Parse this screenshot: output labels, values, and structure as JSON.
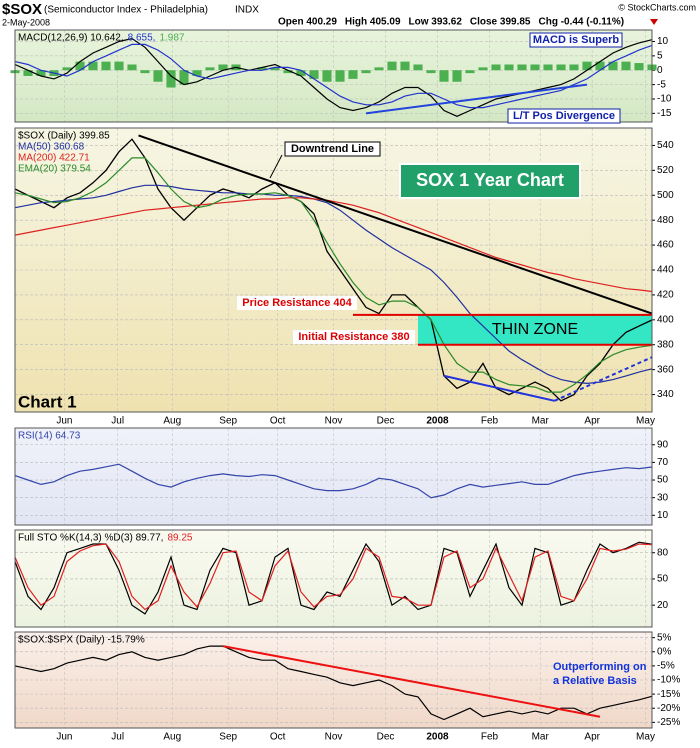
{
  "header": {
    "symbol": "$SOX",
    "name": "(Semiconductor Index - Philadelphia)",
    "exchange": "INDX",
    "date": "2-May-2008",
    "credit": "© StockCharts.com",
    "quote": [
      "Open 400.29",
      "High 405.09",
      "Low 393.62",
      "Close 399.85",
      "Chg -0.44 (-0.11%)"
    ]
  },
  "chart_data": [
    {
      "type": "line",
      "legend": "top-left",
      "legend_layout": "row",
      "xlim": [
        0,
        49
      ],
      "xticks": [
        3.8,
        7.9,
        12.1,
        16.4,
        20.2,
        24.5,
        28.5,
        32.5,
        36.5,
        40.4,
        44.4,
        48.5
      ],
      "ylim": [
        -18,
        14
      ],
      "yticks": [
        10,
        5,
        0,
        -5,
        -10,
        -15
      ],
      "grid": true,
      "series": [
        {
          "name": "MACD(12,26,9) 10.642,",
          "color": "#000000",
          "kind": "line",
          "values": [
            2,
            0,
            -2,
            -3,
            -1,
            3,
            6,
            8,
            10,
            11,
            8,
            3,
            -2,
            -5,
            -4,
            -2,
            0,
            1,
            0,
            1,
            2,
            0,
            -2,
            -6,
            -10,
            -13,
            -14,
            -13,
            -11,
            -8,
            -6,
            -6,
            -9,
            -14,
            -16,
            -14,
            -12,
            -10,
            -9,
            -8,
            -7,
            -6,
            -5,
            -3,
            0,
            3,
            6,
            8,
            9.5,
            10.642
          ]
        },
        {
          "name": "8.655,",
          "color": "#2233cc",
          "kind": "line",
          "values": [
            3,
            2,
            0,
            -1,
            -2,
            0,
            3,
            5,
            7,
            9,
            9,
            7,
            4,
            0,
            -2,
            -3,
            -2,
            -1,
            0,
            0,
            1,
            1,
            0,
            -3,
            -6,
            -9,
            -11,
            -12,
            -12,
            -11,
            -9,
            -8,
            -8,
            -10,
            -12,
            -13,
            -13,
            -12,
            -11,
            -10,
            -9,
            -8,
            -7,
            -5,
            -3,
            0,
            3,
            5,
            7,
            8.655
          ]
        },
        {
          "name": "1.987",
          "color": "#4caf50",
          "kind": "bar",
          "values": [
            -1,
            -2,
            -2,
            -2,
            1,
            3,
            3,
            3,
            3,
            2,
            -1,
            -4,
            -6,
            -5,
            -2,
            1,
            2,
            2,
            0,
            1,
            1,
            -1,
            -2,
            -3,
            -4,
            -4,
            -3,
            -1,
            1,
            3,
            3,
            2,
            -1,
            -4,
            -4,
            -1,
            1,
            2,
            2,
            2,
            2,
            2,
            2,
            2,
            3,
            3,
            3,
            3,
            2.5,
            1.987
          ]
        }
      ],
      "trendlines": [
        {
          "x": [
            27,
            44
          ],
          "y": [
            -15,
            -5
          ],
          "color": "#2244dd"
        }
      ],
      "annotations": [
        "MACD is Superb",
        "L/T Pos Divergence"
      ]
    },
    {
      "type": "line",
      "legend": "top-left",
      "legend_layout": "column",
      "xlim": [
        0,
        49
      ],
      "xticks": [
        {
          "value": 3.8,
          "label": "Jun"
        },
        {
          "value": 7.9,
          "label": "Jul"
        },
        {
          "value": 12.1,
          "label": "Aug"
        },
        {
          "value": 16.4,
          "label": "Sep"
        },
        {
          "value": 20.2,
          "label": "Oct"
        },
        {
          "value": 24.5,
          "label": "Nov"
        },
        {
          "value": 28.5,
          "label": "Dec"
        },
        {
          "value": 32.5,
          "label": "2008"
        },
        {
          "value": 36.5,
          "label": "Feb"
        },
        {
          "value": 40.4,
          "label": "Mar"
        },
        {
          "value": 44.4,
          "label": "Apr"
        },
        {
          "value": 48.5,
          "label": "May"
        }
      ],
      "ylim": [
        326,
        554
      ],
      "yticks": [
        340,
        360,
        380,
        400,
        420,
        440,
        460,
        480,
        500,
        520,
        540
      ],
      "grid": true,
      "series": [
        {
          "name": "$SOX (Daily) 399.85",
          "color": "#000000",
          "kind": "line",
          "values": [
            505,
            500,
            495,
            490,
            498,
            502,
            510,
            520,
            535,
            545,
            530,
            505,
            490,
            480,
            490,
            500,
            505,
            502,
            498,
            505,
            510,
            500,
            495,
            485,
            455,
            440,
            425,
            410,
            405,
            420,
            420,
            410,
            400,
            355,
            345,
            350,
            365,
            345,
            340,
            345,
            350,
            345,
            335,
            340,
            355,
            365,
            380,
            390,
            395,
            399.85
          ]
        },
        {
          "name": "MA(50) 360.68",
          "color": "#1f2fa0",
          "kind": "line",
          "values": [
            490,
            492,
            494,
            495,
            496,
            497,
            498,
            500,
            503,
            506,
            508,
            508,
            507,
            505,
            504,
            503,
            502,
            502,
            501,
            501,
            500,
            500,
            499,
            497,
            494,
            488,
            480,
            472,
            465,
            458,
            452,
            446,
            440,
            430,
            418,
            405,
            395,
            385,
            375,
            368,
            362,
            356,
            352,
            350,
            349,
            350,
            352,
            355,
            358,
            360.68
          ]
        },
        {
          "name": "MA(200) 422.71",
          "color": "#dd2222",
          "kind": "line",
          "values": [
            468,
            470,
            472,
            474,
            476,
            478,
            480,
            482,
            484,
            486,
            488,
            489,
            490,
            491,
            492,
            493,
            494,
            495,
            496,
            497,
            497,
            498,
            498,
            497,
            496,
            494,
            492,
            489,
            486,
            482,
            478,
            474,
            470,
            466,
            462,
            458,
            454,
            450,
            447,
            444,
            441,
            438,
            436,
            433,
            431,
            429,
            427,
            425,
            424,
            422.71
          ]
        },
        {
          "name": "EMA(20) 379.54",
          "color": "#2a8a2a",
          "kind": "line",
          "values": [
            502,
            500,
            497,
            494,
            495,
            498,
            503,
            510,
            520,
            530,
            530,
            518,
            505,
            495,
            490,
            492,
            497,
            500,
            501,
            501,
            502,
            500,
            495,
            480,
            462,
            445,
            430,
            418,
            412,
            415,
            415,
            410,
            400,
            380,
            365,
            358,
            358,
            352,
            348,
            347,
            346,
            342,
            342,
            348,
            356,
            366,
            372,
            376,
            378,
            379.54
          ]
        }
      ],
      "zone": {
        "label": "THIN ZONE",
        "x": [
          31,
          49
        ],
        "y": [
          380,
          404
        ],
        "color": "#33e6c4"
      },
      "trendlines": [
        {
          "x": [
            9.5,
            49
          ],
          "y": [
            548,
            405
          ],
          "color": "#000000"
        },
        {
          "x": [
            26,
            49
          ],
          "y": [
            404,
            404
          ],
          "color": "#e00000"
        },
        {
          "x": [
            31,
            49
          ],
          "y": [
            380,
            380
          ],
          "color": "#e00000"
        },
        {
          "x": [
            33,
            41.5
          ],
          "y": [
            355,
            335
          ],
          "color": "#2233dd"
        },
        {
          "x": [
            41.5,
            49
          ],
          "y": [
            335,
            370
          ],
          "color": "#2233dd",
          "dash": true
        }
      ],
      "annotations": [
        "Downtrend Line",
        "SOX 1 Year Chart",
        "Price Resistance 404",
        "Initial Resistance 380",
        "Chart 1"
      ]
    },
    {
      "type": "line",
      "legend": "top-left",
      "legend_layout": "row",
      "xlim": [
        0,
        49
      ],
      "xticks": [
        3.8,
        7.9,
        12.1,
        16.4,
        20.2,
        24.5,
        28.5,
        32.5,
        36.5,
        40.4,
        44.4,
        48.5
      ],
      "ylim": [
        -1,
        109
      ],
      "yticks": [
        90,
        70,
        50,
        30,
        10
      ],
      "grid": true,
      "series": [
        {
          "name": "RSI(14) 64.73",
          "color": "#3344aa",
          "kind": "line",
          "values": [
            55,
            50,
            45,
            48,
            55,
            60,
            62,
            65,
            68,
            60,
            52,
            45,
            42,
            48,
            52,
            55,
            57,
            55,
            54,
            56,
            55,
            50,
            45,
            40,
            38,
            38,
            40,
            45,
            52,
            50,
            45,
            40,
            30,
            33,
            40,
            45,
            42,
            44,
            46,
            48,
            45,
            45,
            50,
            55,
            58,
            60,
            62,
            64,
            63,
            64.73
          ]
        }
      ]
    },
    {
      "type": "line",
      "legend": "top-left",
      "legend_layout": "row",
      "xlim": [
        0,
        49
      ],
      "xticks": [
        3.8,
        7.9,
        12.1,
        16.4,
        20.2,
        24.5,
        28.5,
        32.5,
        36.5,
        40.4,
        44.4,
        48.5
      ],
      "ylim": [
        -5,
        106
      ],
      "yticks": [
        80,
        50,
        20
      ],
      "grid": true,
      "series": [
        {
          "name": "Full STO %K(14,3) %D(3) 89.77,",
          "color": "#000000",
          "kind": "line",
          "values": [
            70,
            30,
            15,
            40,
            80,
            85,
            90,
            90,
            60,
            20,
            10,
            35,
            75,
            20,
            15,
            60,
            85,
            80,
            20,
            25,
            75,
            85,
            20,
            15,
            35,
            30,
            60,
            90,
            70,
            20,
            30,
            15,
            20,
            85,
            80,
            30,
            60,
            90,
            40,
            20,
            85,
            80,
            20,
            25,
            60,
            90,
            80,
            85,
            92,
            89.77
          ]
        },
        {
          "name": "89.25",
          "color": "#e02020",
          "kind": "line",
          "values": [
            75,
            40,
            20,
            30,
            70,
            82,
            88,
            90,
            70,
            30,
            15,
            25,
            65,
            35,
            18,
            45,
            80,
            82,
            35,
            25,
            65,
            82,
            35,
            18,
            30,
            32,
            50,
            85,
            75,
            30,
            28,
            20,
            20,
            75,
            82,
            40,
            50,
            85,
            55,
            25,
            75,
            82,
            30,
            25,
            50,
            85,
            82,
            84,
            90,
            89.25
          ]
        }
      ]
    },
    {
      "type": "line",
      "legend": "top-left",
      "legend_layout": "row",
      "xlim": [
        0,
        49
      ],
      "xticks": [
        {
          "value": 3.8,
          "label": "Jun"
        },
        {
          "value": 7.9,
          "label": "Jul"
        },
        {
          "value": 12.1,
          "label": "Aug"
        },
        {
          "value": 16.4,
          "label": "Sep"
        },
        {
          "value": 20.2,
          "label": "Oct"
        },
        {
          "value": 24.5,
          "label": "Nov"
        },
        {
          "value": 28.5,
          "label": "Dec"
        },
        {
          "value": 32.5,
          "label": "2008"
        },
        {
          "value": 36.5,
          "label": "Feb"
        },
        {
          "value": 40.4,
          "label": "Mar"
        },
        {
          "value": 44.4,
          "label": "Apr"
        },
        {
          "value": 48.5,
          "label": "May"
        }
      ],
      "ylim": [
        -27,
        7
      ],
      "yticks": [
        {
          "value": 5,
          "label": "5%"
        },
        {
          "value": 0,
          "label": "0%"
        },
        {
          "value": -5,
          "label": "-5%"
        },
        {
          "value": -10,
          "label": "-10%"
        },
        {
          "value": -15,
          "label": "-15%"
        },
        {
          "value": -20,
          "label": "-20%"
        },
        {
          "value": -25,
          "label": "-25%"
        }
      ],
      "grid": true,
      "series": [
        {
          "name": "$SOX:$SPX (Daily) -15.79%",
          "color": "#000000",
          "kind": "line",
          "values": [
            -5,
            -6,
            -7,
            -6,
            -4,
            -3,
            -2,
            -3,
            -1,
            0,
            -2,
            -3,
            -2,
            -1,
            1,
            2,
            2,
            0,
            -2,
            -3,
            -3,
            -6,
            -7,
            -8,
            -9,
            -11,
            -12,
            -11,
            -10,
            -12,
            -15,
            -16,
            -22,
            -24,
            -22,
            -20,
            -23,
            -22,
            -21,
            -22,
            -21,
            -22,
            -20,
            -20,
            -22,
            -20,
            -19,
            -18,
            -17,
            -15.79
          ]
        }
      ],
      "trendlines": [
        {
          "x": [
            16,
            45
          ],
          "y": [
            2,
            -23
          ],
          "color": "#ee1111"
        }
      ],
      "annotations": [
        "Outperforming on",
        "a Relative Basis"
      ]
    }
  ]
}
